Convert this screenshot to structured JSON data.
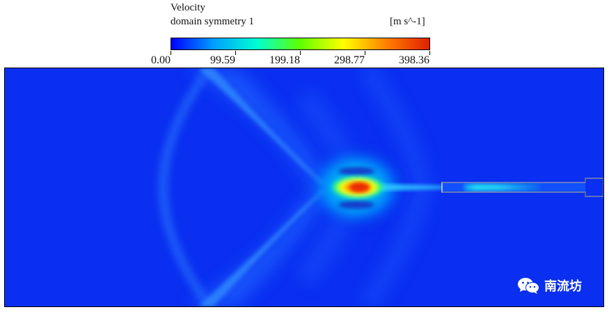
{
  "legend": {
    "title": "Velocity",
    "subtitle": "domain symmetry 1",
    "unit": "[m s^-1]",
    "ticks": [
      "0.00",
      "99.59",
      "199.18",
      "298.77",
      "398.36"
    ],
    "colormap": [
      "#0000ff",
      "#00a0ff",
      "#00ffd0",
      "#60ff00",
      "#ffff00",
      "#ff8000",
      "#e02000"
    ]
  },
  "watermark": {
    "text": "南流坊",
    "icon": "wechat-icon"
  }
}
